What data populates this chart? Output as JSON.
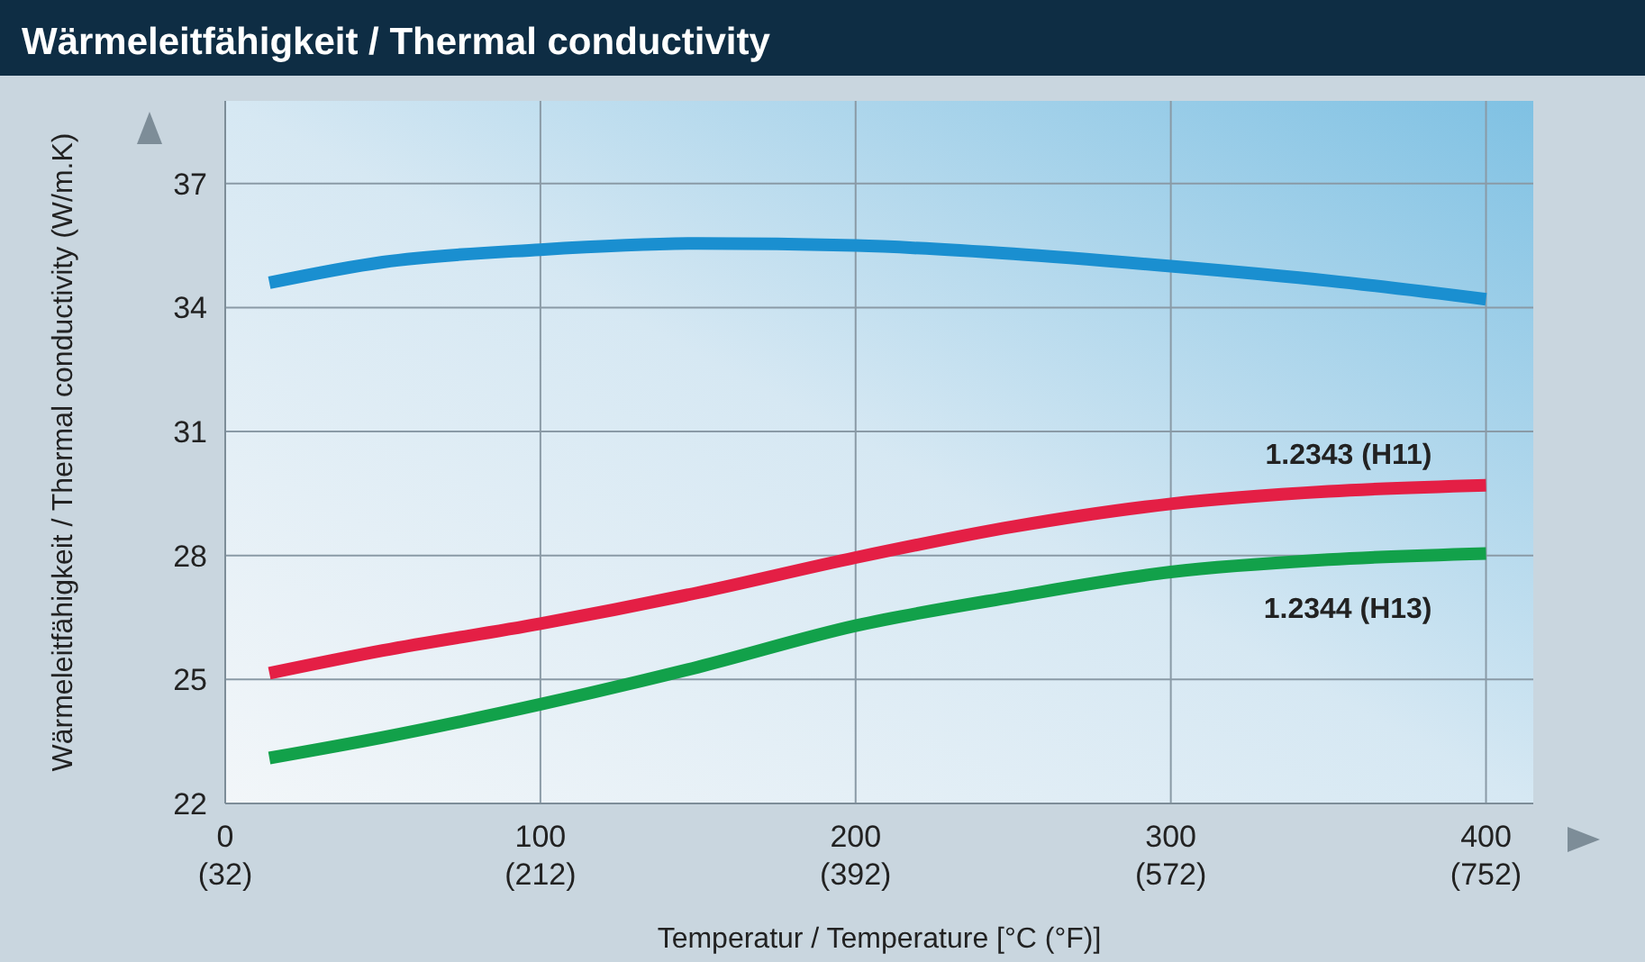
{
  "chart_data": {
    "type": "line",
    "title": "Wärmeleitfähigkeit / Thermal conductivity",
    "xlabel": "Temperatur / Temperature [°C (°F)]",
    "ylabel": "Wärmeleitfähigkeit / Thermal conductivity (W/m.K)",
    "xlim": [
      0,
      415
    ],
    "ylim": [
      22,
      39
    ],
    "xticks": [
      0,
      100,
      200,
      300,
      400
    ],
    "x2lim": [
      32,
      779
    ],
    "x2ticks": [
      {
        "value": 32,
        "label": "(32)"
      },
      {
        "value": 212,
        "label": "(212)"
      },
      {
        "value": 392,
        "label": "(392)"
      },
      {
        "value": 572,
        "label": "(572)"
      },
      {
        "value": 752,
        "label": "(752)"
      }
    ],
    "yticks": [
      22,
      25,
      28,
      31,
      34,
      37
    ],
    "grid": true,
    "legend": false,
    "marker": "none",
    "line_style": "solid",
    "x": [
      14,
      50,
      100,
      150,
      200,
      250,
      300,
      350,
      400
    ],
    "series": [
      {
        "color": "#1a8fd0",
        "values": [
          34.6,
          35.1,
          35.4,
          35.55,
          35.5,
          35.3,
          35.0,
          34.65,
          34.2
        ]
      },
      {
        "name": "1.2343 (H11)",
        "color": "#e41f45",
        "values": [
          25.15,
          25.7,
          26.35,
          27.1,
          27.95,
          28.7,
          29.25,
          29.55,
          29.7
        ]
      },
      {
        "name": "1.2344 (H13)",
        "color": "#12a14a",
        "values": [
          23.1,
          23.6,
          24.4,
          25.3,
          26.3,
          27.0,
          27.6,
          27.9,
          28.05
        ]
      }
    ]
  }
}
